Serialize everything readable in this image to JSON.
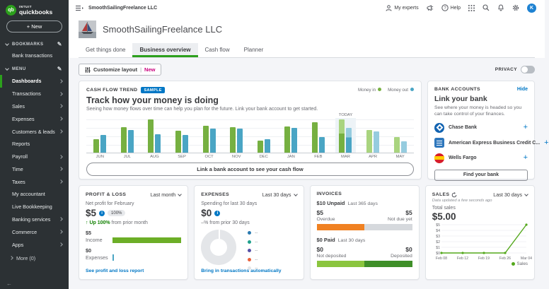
{
  "sidebar": {
    "logo_brand": "INTUIT",
    "logo_name": "quickbooks",
    "new_button": "+ New",
    "bookmarks_label": "BOOKMARKS",
    "bookmarks_items": [
      {
        "label": "Bank transactions"
      }
    ],
    "menu_label": "MENU",
    "items": [
      {
        "label": "Dashboards",
        "chevron": true,
        "active": true
      },
      {
        "label": "Transactions",
        "chevron": true,
        "active": false
      },
      {
        "label": "Sales",
        "chevron": true,
        "active": false
      },
      {
        "label": "Expenses",
        "chevron": true,
        "active": false
      },
      {
        "label": "Customers & leads",
        "chevron": true,
        "active": false
      },
      {
        "label": "Reports",
        "chevron": false,
        "active": false
      },
      {
        "label": "Payroll",
        "chevron": true,
        "active": false
      },
      {
        "label": "Time",
        "chevron": true,
        "active": false
      },
      {
        "label": "Taxes",
        "chevron": true,
        "active": false
      },
      {
        "label": "My accountant",
        "chevron": false,
        "active": false
      },
      {
        "label": "Live Bookkeeping",
        "chevron": false,
        "active": false
      },
      {
        "label": "Banking services",
        "chevron": true,
        "active": false
      },
      {
        "label": "Commerce",
        "chevron": true,
        "active": false
      },
      {
        "label": "Apps",
        "chevron": true,
        "active": false
      }
    ],
    "more_label": "More (0)"
  },
  "topbar": {
    "company": "SmoothSailingFreelance LLC",
    "my_experts": "My experts",
    "help": "Help",
    "avatar_initial": "K"
  },
  "header": {
    "title": "SmoothSailingFreelance LLC",
    "tabs": [
      {
        "label": "Get things done",
        "active": false
      },
      {
        "label": "Business overview",
        "active": true
      },
      {
        "label": "Cash flow",
        "active": false
      },
      {
        "label": "Planner",
        "active": false
      }
    ]
  },
  "toolbar": {
    "customize_label": "Customize layout",
    "customize_new": "New",
    "privacy_label": "PRIVACY",
    "privacy_on": false
  },
  "cashflow": {
    "header": "CASH FLOW TREND",
    "badge": "SAMPLE",
    "title": "Track how your money is doing",
    "subtitle": "Seeing how money flows over time can help you plan for the future. Link your bank account to get started.",
    "legend_in": "Money in",
    "legend_out": "Money out",
    "today_label": "TODAY",
    "cta": "Link a bank account to see your cash flow"
  },
  "bank_accounts": {
    "header": "BANK ACCOUNTS",
    "hide_link": "Hide",
    "title": "Link your bank",
    "subtitle": "See where your money is headed so you can take control of your finances.",
    "banks": [
      {
        "name": "Chase Bank",
        "logo": "chase"
      },
      {
        "name": "American Express Business Credit C...",
        "logo": "amex"
      },
      {
        "name": "Wells Fargo",
        "logo": "wells"
      }
    ],
    "cta": "Find your bank"
  },
  "profit_loss": {
    "header": "PROFIT & LOSS",
    "range": "Last month",
    "subtitle": "Net profit for February",
    "amount": "$5",
    "badge": "100%",
    "trend_highlight": "Up 100%",
    "trend_rest": " from prior month",
    "income_value": "$5",
    "income_label": "Income",
    "income_bar_pct": 100,
    "expenses_value": "$0",
    "expenses_label": "Expenses",
    "expenses_bar_pct": 1,
    "link": "See profit and loss report"
  },
  "expenses": {
    "header": "EXPENSES",
    "range": "Last 30 days",
    "subtitle": "Spending for last 30 days",
    "amount": "$0",
    "trend": "–% from prior 30 days",
    "legend": [
      {
        "color": "#2a7ab0",
        "label": "--"
      },
      {
        "color": "#1fa08c",
        "label": "--"
      },
      {
        "color": "#554fa6",
        "label": "--"
      },
      {
        "color": "#e8613c",
        "label": "--"
      },
      {
        "color": "#e3e5e8",
        "label": "--"
      }
    ],
    "link": "Bring in transactions automatically"
  },
  "invoices": {
    "header": "INVOICES",
    "unpaid_amount": "$10 Unpaid",
    "unpaid_range": "Last 365 days",
    "overdue_value": "$5",
    "overdue_label": "Overdue",
    "notdue_value": "$5",
    "notdue_label": "Not due yet",
    "unpaid_bar": {
      "overdue_pct": 50,
      "notdue_pct": 50
    },
    "paid_amount": "$0 Paid",
    "paid_range": "Last 30 days",
    "notdep_value": "$0",
    "notdep_label": "Not deposited",
    "dep_value": "$0",
    "dep_label": "Deposited",
    "paid_bar": {
      "not_deposited_pct": 50,
      "deposited_pct": 50
    }
  },
  "sales": {
    "header": "SALES",
    "range": "Last 30 days",
    "updated": "Data updated a few seconds ago",
    "total_label": "Total sales",
    "amount": "$5.00",
    "legend": "Sales"
  },
  "chart_data": [
    {
      "id": "cash_flow_trend",
      "type": "bar",
      "title": "Cash flow trend (sample)",
      "categories": [
        "JUN",
        "JUL",
        "AUG",
        "SEP",
        "OCT",
        "NOV",
        "DEC",
        "JAN",
        "FEB",
        "MAR",
        "APR",
        "MAY"
      ],
      "series": [
        {
          "name": "Money in",
          "values": [
            40,
            76,
            97,
            64,
            80,
            76,
            36,
            78,
            90,
            97,
            66,
            46
          ]
        },
        {
          "name": "Money out",
          "values": [
            52,
            66,
            55,
            52,
            70,
            70,
            40,
            72,
            45,
            72,
            62,
            33
          ]
        }
      ],
      "value_unit": "percent of chart max (sample chart, no y-axis labels shown)",
      "today_category": "MAR",
      "today_actual_pct": {
        "in": 57,
        "out": 62
      },
      "forecast_categories": [
        "APR",
        "MAY"
      ],
      "legend": [
        "Money in",
        "Money out"
      ],
      "legend_position": "top-right"
    },
    {
      "id": "sales_last_30_days",
      "type": "line",
      "x": [
        "Feb 08",
        "Feb 12",
        "Feb 19",
        "Feb 26",
        "Mar 04"
      ],
      "series": [
        {
          "name": "Sales",
          "values": [
            0,
            0,
            0,
            0,
            5
          ]
        }
      ],
      "ylim": [
        0,
        5
      ],
      "yticks": [
        "$0",
        "$1",
        "$2",
        "$3",
        "$4",
        "$5"
      ],
      "grid": true,
      "legend_position": "bottom-right"
    }
  ],
  "colors": {
    "qb_green": "#2ca01c",
    "link_blue": "#0077c5",
    "money_in": "#76b041",
    "money_out": "#4aa5c4",
    "forecast_in": "#a9d47f",
    "forecast_out": "#96ccdf",
    "invoice_overdue_orange": "#f08122",
    "invoice_notdue_gray": "#d6d9dd",
    "paid_light_green": "#8bc53f",
    "paid_dark_green": "#3f8f29",
    "sales_line_green": "#54a81c",
    "income_bar_green": "#6cae27",
    "expenses_tick_teal": "#4aa5c4",
    "new_label_pink": "#c9007e"
  }
}
